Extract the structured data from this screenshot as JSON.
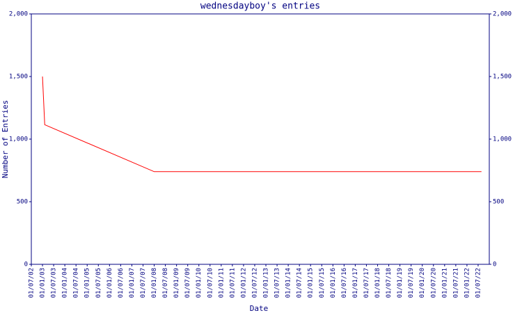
{
  "chart_data": {
    "type": "line",
    "title": "wednesdayboy's entries",
    "x_label": "Date",
    "y_label": "Number of Entries",
    "x": [
      2003.0,
      2003.1,
      2008.0,
      2022.65
    ],
    "values": [
      1500,
      1115,
      740,
      740
    ],
    "color": "#ff0000",
    "axis_color": "#000080",
    "xlim": [
      2002.5,
      2023.0
    ],
    "xticks": [
      {
        "value": 2002.5,
        "label": "01/07/02"
      },
      {
        "value": 2003.0,
        "label": "01/01/03"
      },
      {
        "value": 2003.5,
        "label": "01/07/03"
      },
      {
        "value": 2004.0,
        "label": "01/01/04"
      },
      {
        "value": 2004.5,
        "label": "01/07/04"
      },
      {
        "value": 2005.0,
        "label": "01/01/05"
      },
      {
        "value": 2005.5,
        "label": "01/07/05"
      },
      {
        "value": 2006.0,
        "label": "01/01/06"
      },
      {
        "value": 2006.5,
        "label": "01/07/06"
      },
      {
        "value": 2007.0,
        "label": "01/01/07"
      },
      {
        "value": 2007.5,
        "label": "01/07/07"
      },
      {
        "value": 2008.0,
        "label": "01/01/08"
      },
      {
        "value": 2008.5,
        "label": "01/07/08"
      },
      {
        "value": 2009.0,
        "label": "01/01/09"
      },
      {
        "value": 2009.5,
        "label": "01/07/09"
      },
      {
        "value": 2010.0,
        "label": "01/01/10"
      },
      {
        "value": 2010.5,
        "label": "01/07/10"
      },
      {
        "value": 2011.0,
        "label": "01/01/11"
      },
      {
        "value": 2011.5,
        "label": "01/07/11"
      },
      {
        "value": 2012.0,
        "label": "01/01/12"
      },
      {
        "value": 2012.5,
        "label": "01/07/12"
      },
      {
        "value": 2013.0,
        "label": "01/01/13"
      },
      {
        "value": 2013.5,
        "label": "01/07/13"
      },
      {
        "value": 2014.0,
        "label": "01/01/14"
      },
      {
        "value": 2014.5,
        "label": "01/07/14"
      },
      {
        "value": 2015.0,
        "label": "01/01/15"
      },
      {
        "value": 2015.5,
        "label": "01/07/15"
      },
      {
        "value": 2016.0,
        "label": "01/01/16"
      },
      {
        "value": 2016.5,
        "label": "01/07/16"
      },
      {
        "value": 2017.0,
        "label": "01/01/17"
      },
      {
        "value": 2017.5,
        "label": "01/07/17"
      },
      {
        "value": 2018.0,
        "label": "01/01/18"
      },
      {
        "value": 2018.5,
        "label": "01/07/18"
      },
      {
        "value": 2019.0,
        "label": "01/01/19"
      },
      {
        "value": 2019.5,
        "label": "01/07/19"
      },
      {
        "value": 2020.0,
        "label": "01/01/20"
      },
      {
        "value": 2020.5,
        "label": "01/07/20"
      },
      {
        "value": 2021.0,
        "label": "01/01/21"
      },
      {
        "value": 2021.5,
        "label": "01/07/21"
      },
      {
        "value": 2022.0,
        "label": "01/01/22"
      },
      {
        "value": 2022.5,
        "label": "01/07/22"
      }
    ],
    "ylim": [
      0,
      2000
    ],
    "yticks": [
      0,
      500,
      {
        "value": 1000,
        "label": "1,000"
      },
      {
        "value": 1500,
        "label": "1,500"
      },
      {
        "value": 2000,
        "label": "2,000"
      }
    ]
  }
}
